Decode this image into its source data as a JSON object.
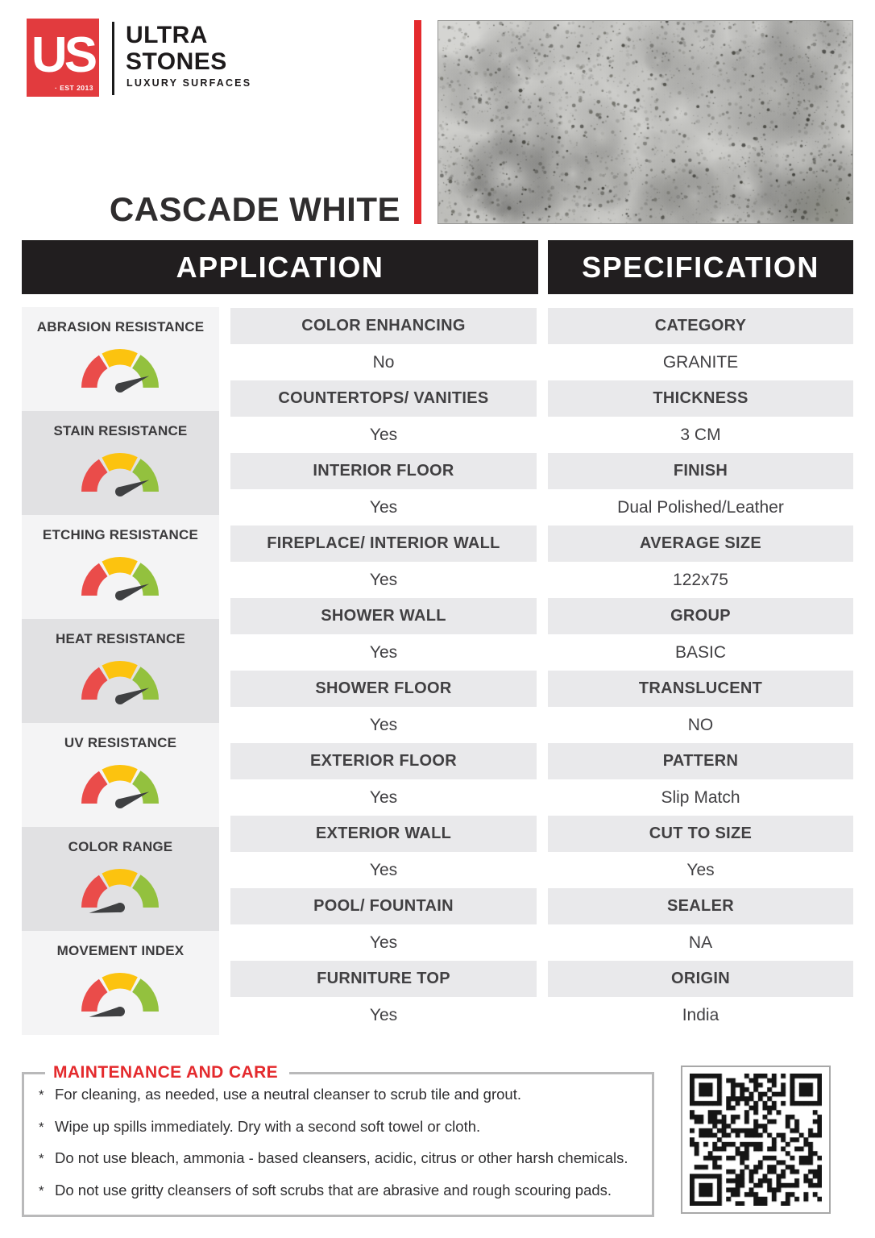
{
  "brand": {
    "monogram": "US",
    "est": "· EST 2013",
    "name_line1": "ULTRA",
    "name_line2": "STONES",
    "tagline": "LUXURY SURFACES"
  },
  "product": {
    "title": "CASCADE WHITE"
  },
  "headers": {
    "application": "APPLICATION",
    "specification": "SPECIFICATION"
  },
  "ratings": {
    "items": [
      {
        "label": "ABRASION RESISTANCE",
        "level": "high"
      },
      {
        "label": "STAIN RESISTANCE",
        "level": "high"
      },
      {
        "label": "ETCHING RESISTANCE",
        "level": "high"
      },
      {
        "label": "HEAT RESISTANCE",
        "level": "high"
      },
      {
        "label": "UV RESISTANCE",
        "level": "high"
      },
      {
        "label": "COLOR RANGE",
        "level": "low"
      },
      {
        "label": "MOVEMENT INDEX",
        "level": "low"
      }
    ],
    "gauge_colors": {
      "red": "#ea4c4a",
      "yellow": "#fcc30f",
      "green": "#93c13e",
      "needle": "#3f4042"
    }
  },
  "application_rows": [
    {
      "label": "COLOR ENHANCING",
      "value": "No"
    },
    {
      "label": "COUNTERTOPS/ VANITIES",
      "value": "Yes"
    },
    {
      "label": "INTERIOR FLOOR",
      "value": "Yes"
    },
    {
      "label": "FIREPLACE/ INTERIOR WALL",
      "value": "Yes"
    },
    {
      "label": "SHOWER WALL",
      "value": "Yes"
    },
    {
      "label": "SHOWER FLOOR",
      "value": "Yes"
    },
    {
      "label": "EXTERIOR FLOOR",
      "value": "Yes"
    },
    {
      "label": "EXTERIOR WALL",
      "value": "Yes"
    },
    {
      "label": "POOL/ FOUNTAIN",
      "value": "Yes"
    },
    {
      "label": "FURNITURE TOP",
      "value": "Yes"
    }
  ],
  "specification_rows": [
    {
      "label": "CATEGORY",
      "value": "GRANITE"
    },
    {
      "label": "THICKNESS",
      "value": "3 CM"
    },
    {
      "label": "FINISH",
      "value": "Dual Polished/Leather"
    },
    {
      "label": "AVERAGE SIZE",
      "value": "122x75"
    },
    {
      "label": "GROUP",
      "value": "BASIC"
    },
    {
      "label": "TRANSLUCENT",
      "value": "NO"
    },
    {
      "label": "PATTERN",
      "value": "Slip Match"
    },
    {
      "label": "CUT TO SIZE",
      "value": "Yes"
    },
    {
      "label": "SEALER",
      "value": "NA"
    },
    {
      "label": "ORIGIN",
      "value": "India"
    }
  ],
  "maintenance": {
    "title": "MAINTENANCE AND CARE",
    "bullet_char": "*",
    "bullets": [
      "For cleaning, as needed, use a neutral cleanser to scrub tile and grout.",
      "Wipe up spills immediately. Dry with a second soft towel or cloth.",
      "Do not use bleach, ammonia - based cleansers, acidic, citrus or other harsh chemicals.",
      "Do not use gritty cleansers of soft scrubs that are abrasive and rough scouring pads."
    ]
  },
  "accent_colors": {
    "red": "#e42a2d",
    "logo_red": "#e23b3e",
    "bar_black": "#211e1f"
  }
}
